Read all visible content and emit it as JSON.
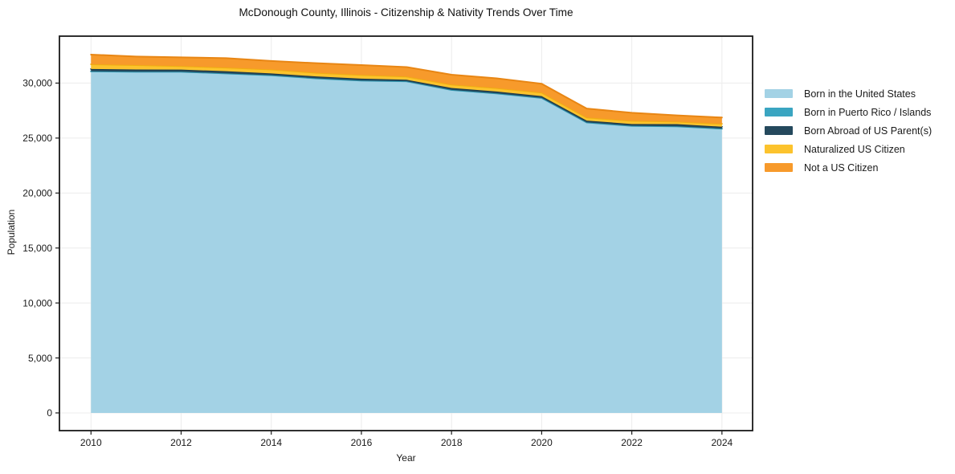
{
  "title": "McDonough County, Illinois - Citizenship & Nativity Trends Over Time",
  "chart_data": {
    "type": "area",
    "stacked": true,
    "title": "McDonough County, Illinois - Citizenship & Nativity Trends Over Time",
    "xlabel": "Year",
    "ylabel": "Population",
    "legend_position": "right",
    "grid": true,
    "x": [
      2010,
      2011,
      2012,
      2013,
      2014,
      2015,
      2016,
      2017,
      2018,
      2019,
      2020,
      2021,
      2022,
      2023,
      2024
    ],
    "x_ticks": [
      2010,
      2012,
      2014,
      2016,
      2018,
      2020,
      2022,
      2024
    ],
    "y_ticks": [
      0,
      5000,
      10000,
      15000,
      20000,
      25000,
      30000
    ],
    "xlim": [
      2009.3,
      2024.68
    ],
    "ylim": [
      -1610,
      34270
    ],
    "series": [
      {
        "name": "Born in the United States",
        "color": "#a3d2e5",
        "edge_color": "#8cc4da",
        "values": [
          31060,
          31020,
          31020,
          30870,
          30700,
          30420,
          30220,
          30150,
          29370,
          29050,
          28640,
          26410,
          26100,
          26060,
          25850
        ]
      },
      {
        "name": "Born in Puerto Rico / Islands",
        "color": "#3aa5c1",
        "edge_color": "#2e94ae",
        "values": [
          15,
          15,
          15,
          15,
          15,
          15,
          15,
          15,
          15,
          15,
          15,
          15,
          15,
          10,
          10
        ]
      },
      {
        "name": "Born Abroad of US Parent(s)",
        "color": "#25495d",
        "edge_color": "#1c3a4b",
        "values": [
          210,
          200,
          190,
          195,
          165,
          170,
          170,
          140,
          170,
          170,
          160,
          165,
          165,
          195,
          175
        ]
      },
      {
        "name": "Naturalized US Citizen",
        "color": "#fcc32d",
        "edge_color": "#f0ae10",
        "values": [
          430,
          400,
          320,
          330,
          360,
          335,
          335,
          295,
          315,
          315,
          325,
          280,
          290,
          235,
          260
        ]
      },
      {
        "name": "Not a US Citizen",
        "color": "#f79a2b",
        "edge_color": "#e88614",
        "values": [
          875,
          785,
          795,
          860,
          770,
          870,
          900,
          860,
          890,
          880,
          800,
          810,
          730,
          560,
          575
        ]
      }
    ]
  }
}
